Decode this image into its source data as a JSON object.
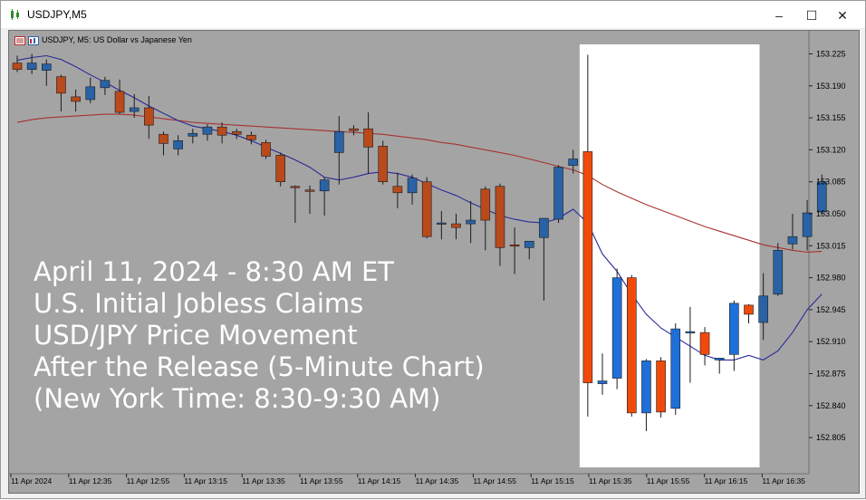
{
  "window": {
    "title": "USDJPY,M5",
    "chart_label": "USDJPY, M5:  US Dollar vs Japanese Yen",
    "controls": [
      "–",
      "☐",
      "✕"
    ]
  },
  "overlay": {
    "lines": [
      "April 11, 2024 - 8:30 AM ET",
      "U.S. Initial Jobless Claims",
      "USD/JPY Price Movement",
      "After the Release (5-Minute Chart)",
      "(New York Time: 8:30-9:30 AM)"
    ]
  },
  "colors": {
    "chart_bg": "#a4a4a4",
    "bull": "#1e6fd8",
    "bear": "#f04a0a",
    "bull_dim": "#2a62a6",
    "bear_dim": "#b84a1c",
    "ma_fast": "#2a2a9a",
    "ma_slow": "#a83232",
    "highlight": "#ffffff"
  },
  "chart_data": {
    "type": "candlestick",
    "symbol": "USDJPY",
    "timeframe": "M5",
    "ylim": [
      152.77,
      153.245
    ],
    "y_ticks": [
      153.225,
      153.19,
      153.155,
      153.12,
      153.085,
      153.05,
      153.015,
      152.98,
      152.945,
      152.91,
      152.875,
      152.84,
      152.805
    ],
    "y_tick_labels": [
      "153.225",
      "153.190",
      "153.155",
      "153.120",
      "153.085",
      "153.050",
      "153.015",
      "152.980",
      "152.945",
      "152.910",
      "152.875",
      "152.840",
      "152.805"
    ],
    "x_tick_labels": [
      "11 Apr 2024",
      "11 Apr 12:35",
      "11 Apr 12:55",
      "11 Apr 13:15",
      "11 Apr 13:35",
      "11 Apr 13:55",
      "11 Apr 14:15",
      "11 Apr 14:35",
      "11 Apr 14:55",
      "11 Apr 15:15",
      "11 Apr 15:35",
      "11 Apr 15:55",
      "11 Apr 16:15",
      "11 Apr 16:35"
    ],
    "highlight_range": [
      39,
      50
    ],
    "candles": [
      {
        "o": 153.215,
        "h": 153.223,
        "c": 153.208,
        "l": 153.205
      },
      {
        "o": 153.208,
        "h": 153.225,
        "c": 153.215,
        "l": 153.203
      },
      {
        "o": 153.207,
        "h": 153.219,
        "c": 153.214,
        "l": 153.19
      },
      {
        "o": 153.2,
        "h": 153.202,
        "c": 153.182,
        "l": 153.162
      },
      {
        "o": 153.178,
        "h": 153.186,
        "c": 153.173,
        "l": 153.162
      },
      {
        "o": 153.175,
        "h": 153.199,
        "c": 153.189,
        "l": 153.171
      },
      {
        "o": 153.188,
        "h": 153.2,
        "c": 153.196,
        "l": 153.18
      },
      {
        "o": 153.184,
        "h": 153.197,
        "c": 153.161,
        "l": 153.159
      },
      {
        "o": 153.162,
        "h": 153.181,
        "c": 153.166,
        "l": 153.155
      },
      {
        "o": 153.166,
        "h": 153.179,
        "c": 153.147,
        "l": 153.132
      },
      {
        "o": 153.137,
        "h": 153.14,
        "c": 153.127,
        "l": 153.114
      },
      {
        "o": 153.121,
        "h": 153.136,
        "c": 153.13,
        "l": 153.114
      },
      {
        "o": 153.135,
        "h": 153.143,
        "c": 153.138,
        "l": 153.127
      },
      {
        "o": 153.137,
        "h": 153.148,
        "c": 153.145,
        "l": 153.13
      },
      {
        "o": 153.145,
        "h": 153.15,
        "c": 153.136,
        "l": 153.127
      },
      {
        "o": 153.14,
        "h": 153.143,
        "c": 153.137,
        "l": 153.132
      },
      {
        "o": 153.136,
        "h": 153.14,
        "c": 153.131,
        "l": 153.126
      },
      {
        "o": 153.128,
        "h": 153.131,
        "c": 153.113,
        "l": 153.11
      },
      {
        "o": 153.114,
        "h": 153.117,
        "c": 153.085,
        "l": 153.08
      },
      {
        "o": 153.08,
        "h": 153.081,
        "c": 153.079,
        "l": 153.04
      },
      {
        "o": 153.076,
        "h": 153.081,
        "c": 153.075,
        "l": 153.05
      },
      {
        "o": 153.075,
        "h": 153.09,
        "c": 153.087,
        "l": 153.048
      },
      {
        "o": 153.117,
        "h": 153.157,
        "c": 153.14,
        "l": 153.082
      },
      {
        "o": 153.143,
        "h": 153.147,
        "c": 153.141,
        "l": 153.136
      },
      {
        "o": 153.143,
        "h": 153.161,
        "c": 153.123,
        "l": 153.094
      },
      {
        "o": 153.124,
        "h": 153.13,
        "c": 153.085,
        "l": 153.082
      },
      {
        "o": 153.08,
        "h": 153.095,
        "c": 153.073,
        "l": 153.056
      },
      {
        "o": 153.073,
        "h": 153.093,
        "c": 153.089,
        "l": 153.06
      },
      {
        "o": 153.085,
        "h": 153.09,
        "c": 153.025,
        "l": 153.023
      },
      {
        "o": 153.04,
        "h": 153.053,
        "c": 153.04,
        "l": 153.022
      },
      {
        "o": 153.039,
        "h": 153.05,
        "c": 153.035,
        "l": 153.022
      },
      {
        "o": 153.039,
        "h": 153.064,
        "c": 153.043,
        "l": 153.018
      },
      {
        "o": 153.077,
        "h": 153.08,
        "c": 153.043,
        "l": 153.01
      },
      {
        "o": 153.08,
        "h": 153.083,
        "c": 153.013,
        "l": 152.993
      },
      {
        "o": 153.016,
        "h": 153.035,
        "c": 153.015,
        "l": 152.984
      },
      {
        "o": 153.013,
        "h": 153.02,
        "c": 153.02,
        "l": 153.0
      },
      {
        "o": 153.024,
        "h": 153.043,
        "c": 153.045,
        "l": 152.955
      },
      {
        "o": 153.044,
        "h": 153.103,
        "c": 153.101,
        "l": 153.04
      },
      {
        "o": 153.103,
        "h": 153.12,
        "c": 153.11,
        "l": 153.094
      },
      {
        "o": 153.118,
        "h": 153.224,
        "c": 152.865,
        "l": 152.828
      },
      {
        "o": 152.864,
        "h": 152.897,
        "c": 152.867,
        "l": 152.852
      },
      {
        "o": 152.87,
        "h": 152.99,
        "c": 152.98,
        "l": 152.858
      },
      {
        "o": 152.98,
        "h": 152.983,
        "c": 152.832,
        "l": 152.828
      },
      {
        "o": 152.832,
        "h": 152.891,
        "c": 152.889,
        "l": 152.812
      },
      {
        "o": 152.889,
        "h": 152.893,
        "c": 152.833,
        "l": 152.827
      },
      {
        "o": 152.837,
        "h": 152.93,
        "c": 152.924,
        "l": 152.83
      },
      {
        "o": 152.921,
        "h": 152.948,
        "c": 152.921,
        "l": 152.865
      },
      {
        "o": 152.92,
        "h": 152.926,
        "c": 152.896,
        "l": 152.884
      },
      {
        "o": 152.89,
        "h": 152.891,
        "c": 152.892,
        "l": 152.875
      },
      {
        "o": 152.896,
        "h": 152.955,
        "c": 152.952,
        "l": 152.878
      },
      {
        "o": 152.95,
        "h": 152.951,
        "c": 152.94,
        "l": 152.93
      },
      {
        "o": 152.931,
        "h": 152.985,
        "c": 152.96,
        "l": 152.912
      },
      {
        "o": 152.962,
        "h": 153.018,
        "c": 153.01,
        "l": 152.96
      },
      {
        "o": 153.017,
        "h": 153.05,
        "c": 153.025,
        "l": 153.011
      },
      {
        "o": 153.025,
        "h": 153.065,
        "c": 153.051,
        "l": 153.01
      },
      {
        "o": 153.052,
        "h": 153.093,
        "c": 153.085,
        "l": 153.049
      }
    ],
    "ma_fast": [
      153.218,
      153.221,
      153.223,
      153.219,
      153.211,
      153.202,
      153.194,
      153.185,
      153.177,
      153.168,
      153.16,
      153.152,
      153.146,
      153.143,
      153.14,
      153.136,
      153.13,
      153.123,
      153.116,
      153.109,
      153.101,
      153.09,
      153.087,
      153.09,
      153.094,
      153.096,
      153.094,
      153.09,
      153.083,
      153.076,
      153.07,
      153.062,
      153.055,
      153.048,
      153.044,
      153.041,
      153.04,
      153.045,
      153.055,
      153.04,
      153.006,
      152.987,
      152.962,
      152.94,
      152.925,
      152.915,
      152.905,
      152.895,
      152.89,
      152.89,
      152.895,
      152.89,
      152.9,
      152.92,
      152.945,
      152.962
    ],
    "ma_slow": [
      153.15,
      153.153,
      153.155,
      153.156,
      153.157,
      153.158,
      153.159,
      153.159,
      153.158,
      153.156,
      153.154,
      153.152,
      153.15,
      153.149,
      153.148,
      153.147,
      153.146,
      153.145,
      153.144,
      153.143,
      153.142,
      153.141,
      153.14,
      153.139,
      153.138,
      153.137,
      153.135,
      153.133,
      153.131,
      153.128,
      153.126,
      153.123,
      153.12,
      153.117,
      153.114,
      153.11,
      153.106,
      153.102,
      153.098,
      153.092,
      153.082,
      153.074,
      153.067,
      153.06,
      153.054,
      153.048,
      153.042,
      153.036,
      153.031,
      153.026,
      153.021,
      153.016,
      153.013,
      153.01,
      153.008,
      153.009
    ]
  }
}
